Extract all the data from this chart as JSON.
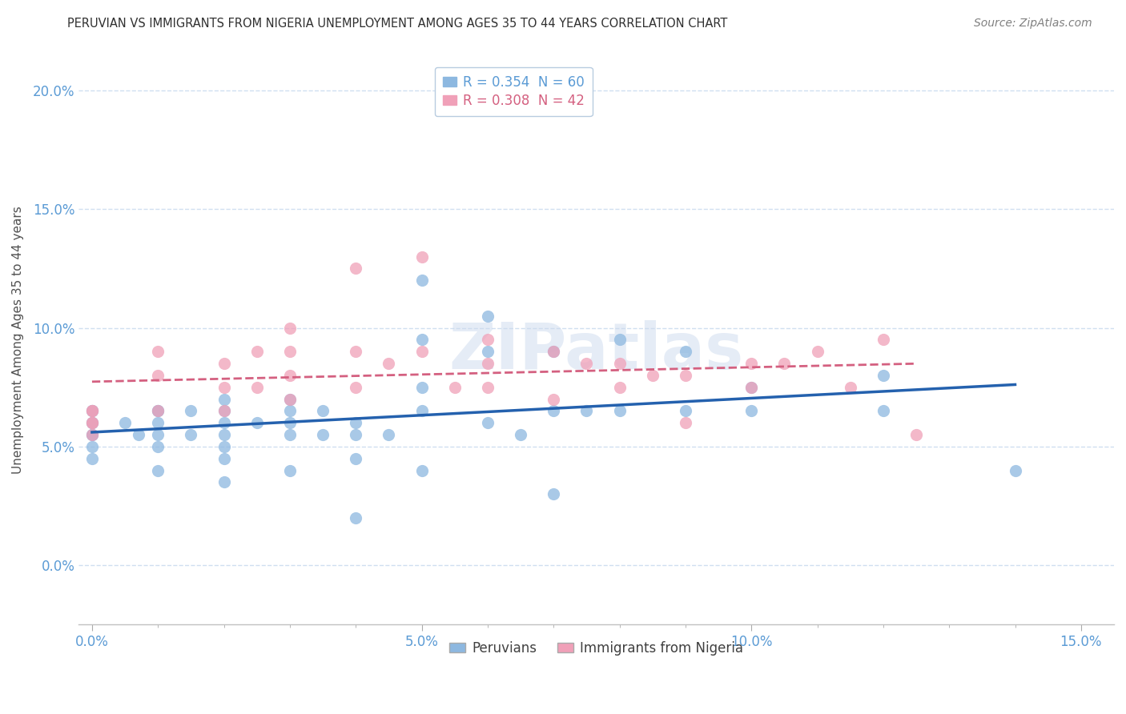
{
  "title": "PERUVIAN VS IMMIGRANTS FROM NIGERIA UNEMPLOYMENT AMONG AGES 35 TO 44 YEARS CORRELATION CHART",
  "source": "Source: ZipAtlas.com",
  "ylabel": "Unemployment Among Ages 35 to 44 years",
  "xlim": [
    -0.002,
    0.155
  ],
  "ylim": [
    -0.025,
    0.215
  ],
  "xticks": [
    0.0,
    0.05,
    0.1,
    0.15
  ],
  "yticks": [
    0.0,
    0.05,
    0.1,
    0.15,
    0.2
  ],
  "peruvian_color": "#8db8e0",
  "nigeria_color": "#f0a0b8",
  "peruvian_R": 0.354,
  "peruvian_N": 60,
  "nigeria_R": 0.308,
  "nigeria_N": 42,
  "peruvian_line_color": "#2461ae",
  "nigeria_line_color": "#d46080",
  "grid_color": "#d0dff0",
  "title_color": "#303030",
  "axis_label_color": "#5b9bd5",
  "bottom_label_color": "#404040",
  "watermark": "ZIPatlas",
  "legend_edge_color": "#b8cce0",
  "peruvian_x": [
    0.0,
    0.0,
    0.0,
    0.0,
    0.0,
    0.0,
    0.0,
    0.0,
    0.005,
    0.007,
    0.01,
    0.01,
    0.01,
    0.01,
    0.01,
    0.01,
    0.015,
    0.015,
    0.02,
    0.02,
    0.02,
    0.02,
    0.02,
    0.02,
    0.02,
    0.025,
    0.03,
    0.03,
    0.03,
    0.03,
    0.03,
    0.035,
    0.035,
    0.04,
    0.04,
    0.04,
    0.04,
    0.045,
    0.05,
    0.05,
    0.05,
    0.05,
    0.05,
    0.06,
    0.06,
    0.06,
    0.065,
    0.07,
    0.07,
    0.07,
    0.075,
    0.08,
    0.08,
    0.09,
    0.09,
    0.1,
    0.1,
    0.12,
    0.12,
    0.14
  ],
  "peruvian_y": [
    0.065,
    0.065,
    0.06,
    0.06,
    0.055,
    0.055,
    0.05,
    0.045,
    0.06,
    0.055,
    0.065,
    0.065,
    0.06,
    0.055,
    0.05,
    0.04,
    0.065,
    0.055,
    0.07,
    0.065,
    0.06,
    0.055,
    0.05,
    0.045,
    0.035,
    0.06,
    0.07,
    0.065,
    0.06,
    0.055,
    0.04,
    0.065,
    0.055,
    0.06,
    0.055,
    0.045,
    0.02,
    0.055,
    0.12,
    0.095,
    0.075,
    0.065,
    0.04,
    0.105,
    0.09,
    0.06,
    0.055,
    0.09,
    0.065,
    0.03,
    0.065,
    0.095,
    0.065,
    0.09,
    0.065,
    0.075,
    0.065,
    0.08,
    0.065,
    0.04
  ],
  "nigeria_x": [
    0.0,
    0.0,
    0.0,
    0.0,
    0.0,
    0.01,
    0.01,
    0.01,
    0.02,
    0.02,
    0.02,
    0.025,
    0.025,
    0.03,
    0.03,
    0.03,
    0.03,
    0.04,
    0.04,
    0.04,
    0.045,
    0.05,
    0.05,
    0.055,
    0.06,
    0.06,
    0.06,
    0.07,
    0.07,
    0.075,
    0.08,
    0.08,
    0.085,
    0.09,
    0.09,
    0.1,
    0.1,
    0.105,
    0.11,
    0.115,
    0.12,
    0.125
  ],
  "nigeria_y": [
    0.065,
    0.065,
    0.06,
    0.06,
    0.055,
    0.09,
    0.08,
    0.065,
    0.085,
    0.075,
    0.065,
    0.09,
    0.075,
    0.1,
    0.09,
    0.08,
    0.07,
    0.125,
    0.09,
    0.075,
    0.085,
    0.13,
    0.09,
    0.075,
    0.095,
    0.085,
    0.075,
    0.09,
    0.07,
    0.085,
    0.085,
    0.075,
    0.08,
    0.08,
    0.06,
    0.085,
    0.075,
    0.085,
    0.09,
    0.075,
    0.095,
    0.055
  ]
}
